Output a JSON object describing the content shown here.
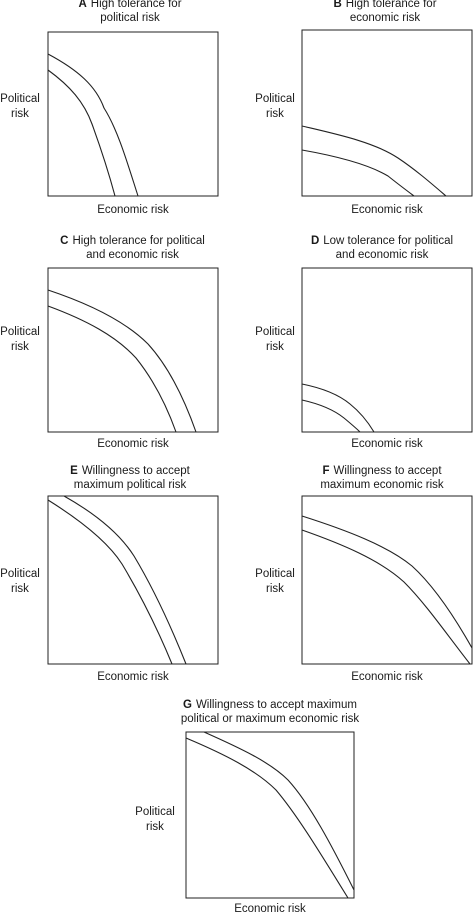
{
  "panels": [
    {
      "letter": "A",
      "title": "High tolerance for\npolitical risk",
      "ylabel": "Political\nrisk",
      "xlabel": "Economic risk"
    },
    {
      "letter": "B",
      "title": "High tolerance for\neconomic risk",
      "ylabel": "Political\nrisk",
      "xlabel": "Economic risk"
    },
    {
      "letter": "C",
      "title": "High tolerance for political\nand economic risk",
      "ylabel": "Political\nrisk",
      "xlabel": "Economic risk"
    },
    {
      "letter": "D",
      "title": "Low tolerance for political\nand economic risk",
      "ylabel": "Political\nrisk",
      "xlabel": "Economic risk"
    },
    {
      "letter": "E",
      "title": "Willingness to accept\nmaximum political risk",
      "ylabel": "Political\nrisk",
      "xlabel": "Economic risk"
    },
    {
      "letter": "F",
      "title": "Willingness to accept\nmaximum economic risk",
      "ylabel": "Political\nrisk",
      "xlabel": "Economic risk"
    },
    {
      "letter": "G",
      "title": "Willingness to accept maximum\npolitical or maximum economic risk",
      "ylabel": "Political\nrisk",
      "xlabel": "Economic risk"
    }
  ]
}
